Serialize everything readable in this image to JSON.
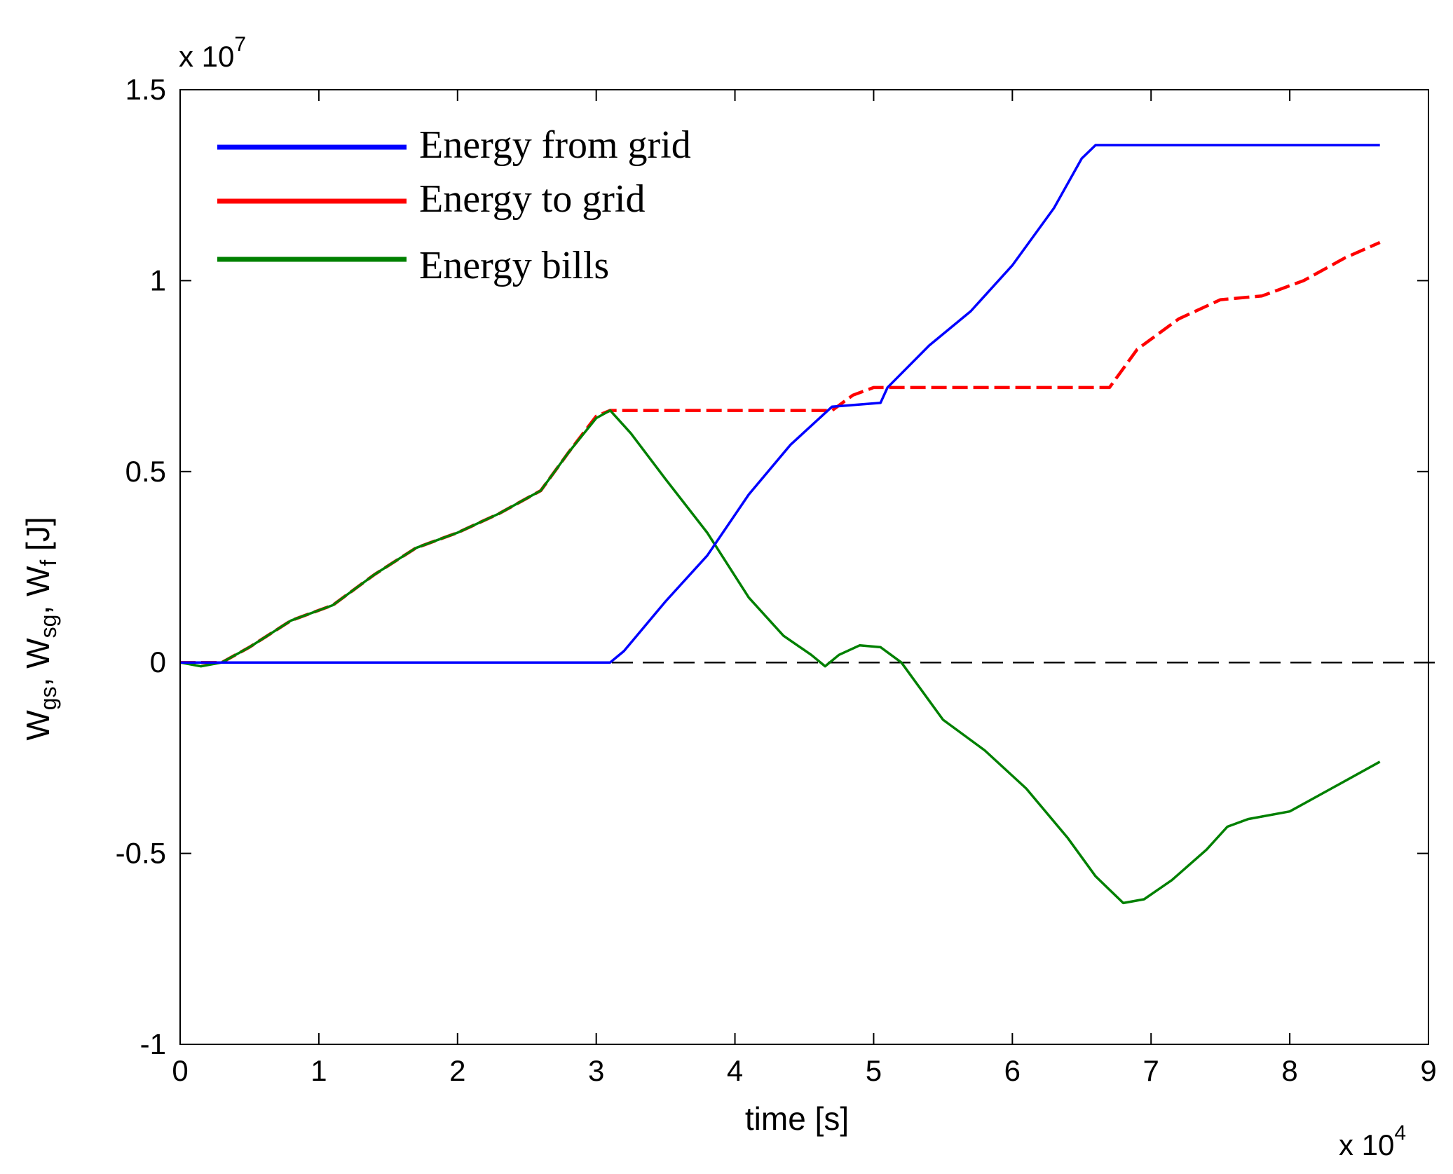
{
  "chart_data": {
    "type": "line",
    "title": "",
    "xlabel": "time [s]",
    "ylabel_parts": {
      "w1": "W",
      "s1": "gs",
      "w2": "W",
      "s2": "sg",
      "w3": "W",
      "s3": "f",
      "unit": "[J]"
    },
    "x_multiplier": {
      "base": "x 10",
      "exp": "4"
    },
    "y_multiplier": {
      "base": "x 10",
      "exp": "7"
    },
    "xlim": [
      0,
      9
    ],
    "ylim": [
      -1,
      1.5
    ],
    "x_ticks": [
      0,
      1,
      2,
      3,
      4,
      5,
      6,
      7,
      8,
      9
    ],
    "x_tick_labels": [
      "0",
      "1",
      "2",
      "3",
      "4",
      "5",
      "6",
      "7",
      "8",
      "9"
    ],
    "y_ticks": [
      -1,
      -0.5,
      0,
      0.5,
      1,
      1.5
    ],
    "y_tick_labels": [
      "-1",
      "-0.5",
      "0",
      "0.5",
      "1",
      "1.5"
    ],
    "legend_position": "top-left",
    "zero_line": {
      "y": 0,
      "style": "dashed",
      "color": "#000000"
    },
    "series": [
      {
        "name": "Energy from grid",
        "color": "#0000ff",
        "style": "solid",
        "points": [
          [
            0,
            0
          ],
          [
            3.1,
            0
          ],
          [
            3.2,
            0.03
          ],
          [
            3.5,
            0.16
          ],
          [
            3.8,
            0.28
          ],
          [
            4.1,
            0.44
          ],
          [
            4.4,
            0.57
          ],
          [
            4.7,
            0.67
          ],
          [
            5.05,
            0.68
          ],
          [
            5.1,
            0.72
          ],
          [
            5.4,
            0.83
          ],
          [
            5.7,
            0.92
          ],
          [
            6.0,
            1.04
          ],
          [
            6.3,
            1.19
          ],
          [
            6.5,
            1.32
          ],
          [
            6.6,
            1.355
          ],
          [
            8.65,
            1.355
          ]
        ]
      },
      {
        "name": "Energy to grid",
        "color": "#ff0000",
        "style": "dashed",
        "points": [
          [
            0,
            0
          ],
          [
            0.3,
            0
          ],
          [
            0.5,
            0.04
          ],
          [
            0.8,
            0.11
          ],
          [
            1.1,
            0.15
          ],
          [
            1.4,
            0.23
          ],
          [
            1.7,
            0.3
          ],
          [
            2.0,
            0.34
          ],
          [
            2.3,
            0.39
          ],
          [
            2.6,
            0.45
          ],
          [
            2.8,
            0.55
          ],
          [
            3.0,
            0.645
          ],
          [
            3.1,
            0.66
          ],
          [
            4.7,
            0.66
          ],
          [
            4.85,
            0.7
          ],
          [
            5.0,
            0.72
          ],
          [
            6.7,
            0.72
          ],
          [
            6.9,
            0.82
          ],
          [
            7.2,
            0.9
          ],
          [
            7.5,
            0.95
          ],
          [
            7.8,
            0.96
          ],
          [
            8.1,
            1.0
          ],
          [
            8.4,
            1.06
          ],
          [
            8.65,
            1.1
          ]
        ]
      },
      {
        "name": "Energy bills",
        "color": "#008000",
        "style": "solid",
        "points": [
          [
            0,
            0
          ],
          [
            0.15,
            -0.01
          ],
          [
            0.3,
            0
          ],
          [
            0.5,
            0.04
          ],
          [
            0.8,
            0.11
          ],
          [
            1.1,
            0.15
          ],
          [
            1.4,
            0.23
          ],
          [
            1.7,
            0.3
          ],
          [
            2.0,
            0.34
          ],
          [
            2.3,
            0.39
          ],
          [
            2.6,
            0.45
          ],
          [
            2.8,
            0.55
          ],
          [
            3.0,
            0.64
          ],
          [
            3.1,
            0.66
          ],
          [
            3.25,
            0.6
          ],
          [
            3.5,
            0.48
          ],
          [
            3.8,
            0.34
          ],
          [
            4.1,
            0.17
          ],
          [
            4.35,
            0.07
          ],
          [
            4.55,
            0.02
          ],
          [
            4.65,
            -0.01
          ],
          [
            4.75,
            0.02
          ],
          [
            4.9,
            0.045
          ],
          [
            5.05,
            0.04
          ],
          [
            5.2,
            0.0
          ],
          [
            5.5,
            -0.15
          ],
          [
            5.8,
            -0.23
          ],
          [
            6.1,
            -0.33
          ],
          [
            6.4,
            -0.46
          ],
          [
            6.6,
            -0.56
          ],
          [
            6.8,
            -0.63
          ],
          [
            6.95,
            -0.62
          ],
          [
            7.15,
            -0.57
          ],
          [
            7.4,
            -0.49
          ],
          [
            7.55,
            -0.43
          ],
          [
            7.7,
            -0.41
          ],
          [
            8.0,
            -0.39
          ],
          [
            8.3,
            -0.33
          ],
          [
            8.65,
            -0.26
          ]
        ]
      }
    ]
  }
}
